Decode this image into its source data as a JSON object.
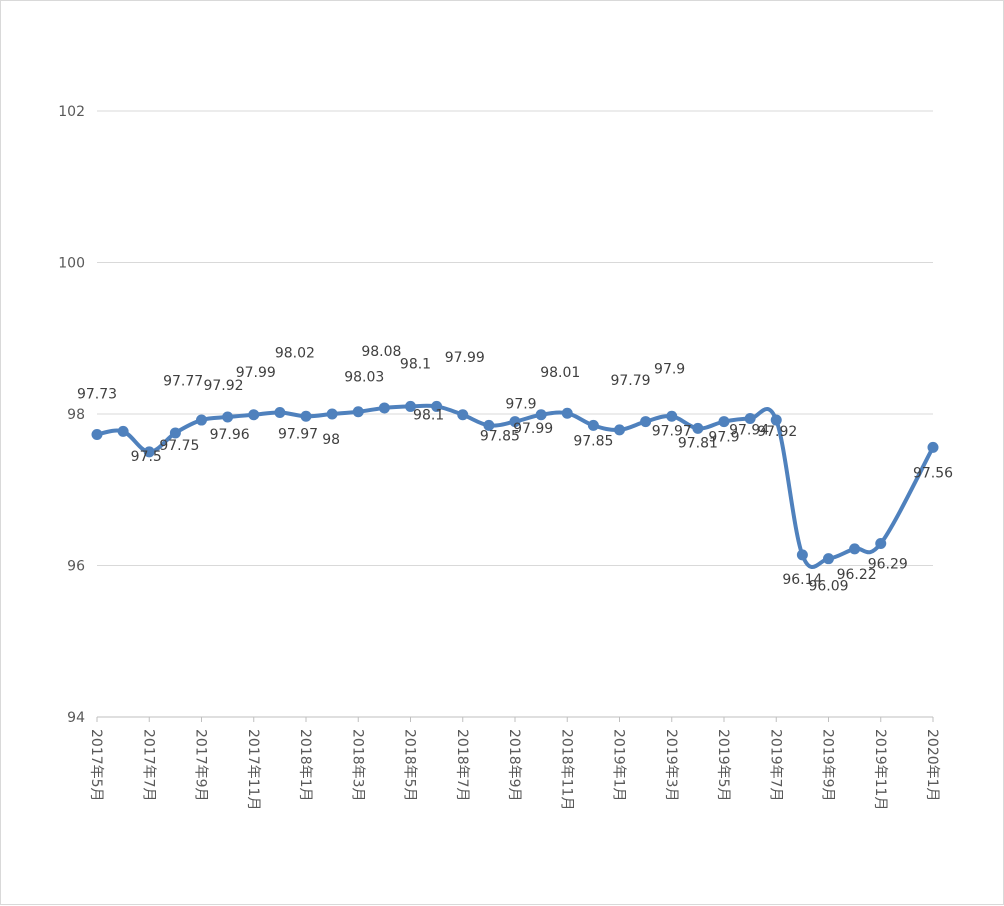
{
  "chart_data": {
    "type": "line",
    "title": "",
    "xlabel": "",
    "ylabel": "",
    "ylim": [
      94,
      102
    ],
    "yticks": [
      94,
      96,
      98,
      100,
      102
    ],
    "grid": true,
    "legend": "none",
    "colors": {
      "line": "#4F81BD",
      "grid": "#d9d9d9",
      "axis": "#bfbfbf",
      "text": "#595959"
    },
    "x": [
      "2017年5月",
      "2017年6月",
      "2017年7月",
      "2017年8月",
      "2017年9月",
      "2017年10月",
      "2017年11月",
      "2017年12月",
      "2018年1月",
      "2018年2月",
      "2018年3月",
      "2018年4月",
      "2018年5月",
      "2018年6月",
      "2018年7月",
      "2018年8月",
      "2018年9月",
      "2018年10月",
      "2018年11月",
      "2018年12月",
      "2019年1月",
      "2019年2月",
      "2019年3月",
      "2019年4月",
      "2019年5月",
      "2019年6月",
      "2019年7月",
      "2019年8月",
      "2019年9月",
      "2019年10月",
      "2019年11月",
      "2019年12月",
      "2020年1月"
    ],
    "x_tick_labels": [
      "2017年5月",
      "2017年7月",
      "2017年9月",
      "2017年11月",
      "2018年1月",
      "2018年3月",
      "2018年5月",
      "2018年7月",
      "2018年9月",
      "2018年11月",
      "2019年1月",
      "2019年3月",
      "2019年5月",
      "2019年7月",
      "2019年9月",
      "2019年11月",
      "2020年1月"
    ],
    "series": [
      {
        "name": "",
        "values": [
          97.73,
          97.77,
          97.5,
          97.75,
          97.92,
          97.96,
          97.99,
          98.02,
          97.97,
          98.0,
          98.03,
          98.08,
          98.1,
          98.1,
          97.99,
          97.85,
          97.9,
          97.99,
          98.01,
          97.85,
          97.79,
          97.9,
          97.97,
          97.81,
          97.9,
          97.94,
          97.92,
          96.14,
          96.09,
          96.22,
          96.29,
          null,
          97.56
        ],
        "data_labels": [
          "97.73",
          "97.77",
          "97.5",
          "97.75",
          "97.92",
          "97.96",
          "97.99",
          "98.02",
          "97.97",
          "98",
          "98.03",
          "98.08",
          "98.1",
          "98.1",
          "97.99",
          "97.85",
          "97.9",
          "97.99",
          "98.01",
          "97.85",
          "97.79",
          "97.9",
          "97.97",
          "97.81",
          "97.9",
          "97.94",
          "97.92",
          "96.14",
          "96.09",
          "96.22",
          "96.29",
          "",
          "97.56"
        ]
      }
    ]
  }
}
